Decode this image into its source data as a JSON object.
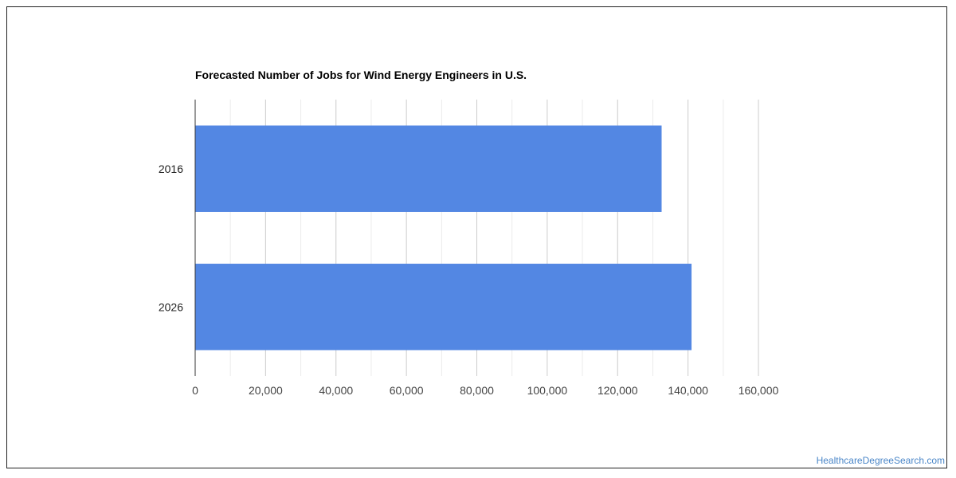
{
  "chart_data": {
    "type": "bar",
    "orientation": "horizontal",
    "title": "Forecasted Number of Jobs for Wind Energy Engineers in U.S.",
    "categories": [
      "2016",
      "2026"
    ],
    "values": [
      132500,
      141000
    ],
    "xlim": [
      0,
      160000
    ],
    "x_ticks": [
      0,
      20000,
      40000,
      60000,
      80000,
      100000,
      120000,
      140000,
      160000
    ],
    "x_tick_labels": [
      "0",
      "20,000",
      "40,000",
      "60,000",
      "80,000",
      "100,000",
      "120,000",
      "140,000",
      "160,000"
    ],
    "xlabel": "",
    "ylabel": "",
    "grid": true,
    "legend": "none",
    "bar_color": "#5387e3"
  },
  "watermark": "HealthcareDegreeSearch.com"
}
